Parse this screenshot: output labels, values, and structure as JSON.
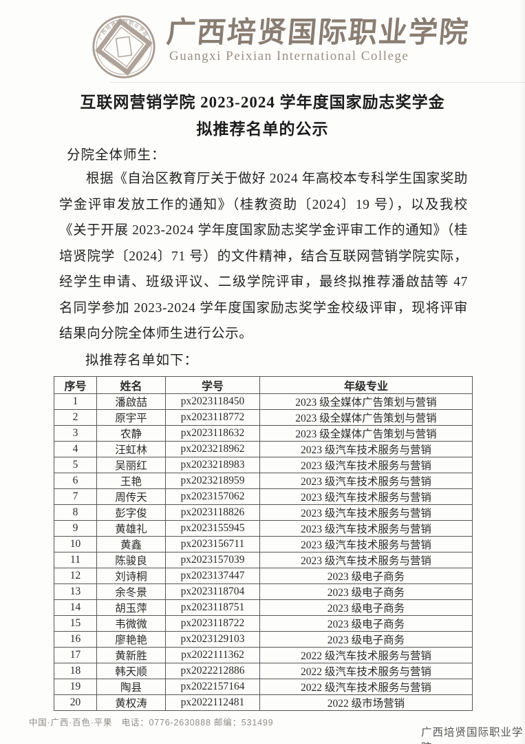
{
  "header": {
    "college_name_cn": "广西培贤国际职业学院",
    "college_name_en": "Guangxi Peixian International College",
    "seal": {
      "icon": "college-seal-icon",
      "arc_text_cn": "广西培贤国际职业学院",
      "arc_text_en": "GUANGXI PEIXIAN INTL COLLEGE"
    }
  },
  "notice": {
    "title_line1": "互联网营销学院 2023-2024 学年度国家励志奖学金",
    "title_line2": "拟推荐名单的公示",
    "salutation": "分院全体师生：",
    "paragraph": "根据《自治区教育厅关于做好 2024 年高校本专科学生国家奖助学金评审发放工作的通知》（桂教资助〔2024〕19 号），以及我校《关于开展 2023-2024 学年度国家励志奖学金评审工作的通知》（桂培贤院学〔2024〕71 号）的文件精神，结合互联网营销学院实际，经学生申请、班级评议、二级学院评审，最终拟推荐潘啟喆等 47 名同学参加 2023-2024 学年度国家励志奖学金校级评审，现将评审结果向分院全体师生进行公示。",
    "list_intro": "拟推荐名单如下："
  },
  "table": {
    "headers": [
      "序号",
      "姓名",
      "学号",
      "年级专业"
    ],
    "rows": [
      [
        "1",
        "潘啟喆",
        "px2023118450",
        "2023 级全媒体广告策划与营销"
      ],
      [
        "2",
        "原宇平",
        "px2023118772",
        "2023 级全媒体广告策划与营销"
      ],
      [
        "3",
        "农静",
        "px2023118632",
        "2023 级全媒体广告策划与营销"
      ],
      [
        "4",
        "汪虹林",
        "px2023218962",
        "2023 级汽车技术服务与营销"
      ],
      [
        "5",
        "吴丽红",
        "px2023218983",
        "2023 级汽车技术服务与营销"
      ],
      [
        "6",
        "王艳",
        "px2023218959",
        "2023 级汽车技术服务与营销"
      ],
      [
        "7",
        "周传天",
        "px2023157062",
        "2023 级汽车技术服务与营销"
      ],
      [
        "8",
        "彭字俊",
        "px2023118826",
        "2023 级汽车技术服务与营销"
      ],
      [
        "9",
        "黄雄礼",
        "px2023155945",
        "2023 级汽车技术服务与营销"
      ],
      [
        "10",
        "黄鑫",
        "px2023156711",
        "2023 级汽车技术服务与营销"
      ],
      [
        "11",
        "陈骏良",
        "px2023157039",
        "2023 级汽车技术服务与营销"
      ],
      [
        "12",
        "刘诗桐",
        "px2023137447",
        "2023 级电子商务"
      ],
      [
        "13",
        "余冬景",
        "px2023118704",
        "2023 级电子商务"
      ],
      [
        "14",
        "胡玉萍",
        "px2023118751",
        "2023 级电子商务"
      ],
      [
        "15",
        "韦微微",
        "px2023118722",
        "2023 级电子商务"
      ],
      [
        "16",
        "廖艳艳",
        "px2023129103",
        "2023 级电子商务"
      ],
      [
        "17",
        "黄新胜",
        "px2022111362",
        "2022 级汽车技术服务与营销"
      ],
      [
        "18",
        "韩天顺",
        "px2022212886",
        "2022 级汽车技术服务与营销"
      ],
      [
        "19",
        "陶县",
        "px2022157164",
        "2022 级汽车技术服务与营销"
      ],
      [
        "20",
        "黄权涛",
        "px2022112481",
        "2022 级市场营销"
      ]
    ]
  },
  "footer": {
    "left": "中国·广西·百色·平果　电话：0776-2630888 邮编：531499",
    "right": "广西培贤国际职业学院"
  },
  "colors": {
    "brand_cn": "#8a7d72",
    "brand_en": "#988d83",
    "seal": "#9a8c80",
    "table_border": "#565656",
    "body_text": "#242424",
    "footer_gray": "#8f8b86"
  }
}
